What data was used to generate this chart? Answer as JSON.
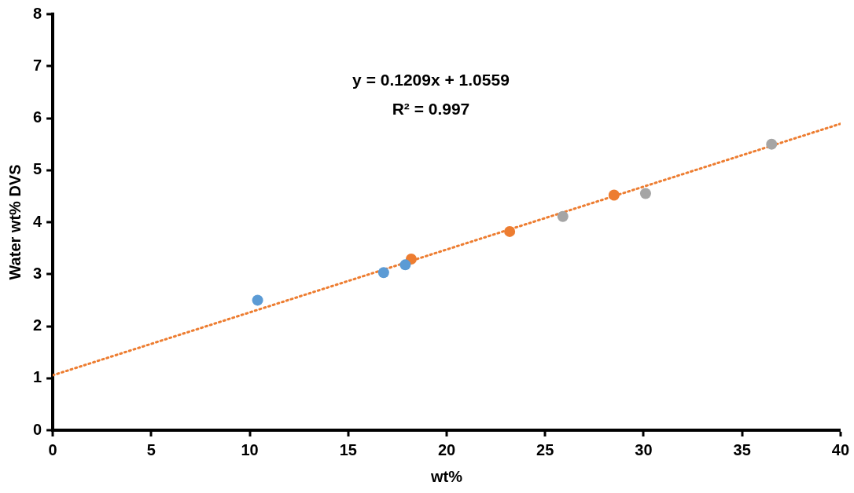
{
  "chart_data": {
    "type": "scatter",
    "xlabel": "wt%",
    "ylabel": "Water wt% DVS",
    "xlim": [
      0,
      40
    ],
    "xticks": [
      0,
      5,
      10,
      15,
      20,
      25,
      30,
      35,
      40
    ],
    "ylim": [
      0,
      8
    ],
    "yticks": [
      0,
      1,
      2,
      3,
      4,
      5,
      6,
      7,
      8
    ],
    "grid": false,
    "legend": false,
    "marker": "circle",
    "annotations": [
      "y = 0.1209x + 1.0559",
      "R² = 0.997"
    ],
    "series": [
      {
        "color": "#5b9bd5",
        "x": [
          10.4,
          16.8,
          17.9
        ],
        "values": [
          2.5,
          3.03,
          3.18
        ]
      },
      {
        "color": "#ed7d31",
        "x": [
          18.2,
          23.2,
          28.5
        ],
        "values": [
          3.29,
          3.82,
          4.52
        ]
      },
      {
        "color": "#a5a5a5",
        "x": [
          25.9,
          30.1,
          36.5
        ],
        "values": [
          4.11,
          4.55,
          5.5
        ]
      },
      {
        "type": "line",
        "color": "#ed7d31",
        "line_style": "dotted",
        "marker": "none",
        "x": [
          0,
          40
        ],
        "values": [
          1.0559,
          5.8919
        ]
      }
    ]
  }
}
